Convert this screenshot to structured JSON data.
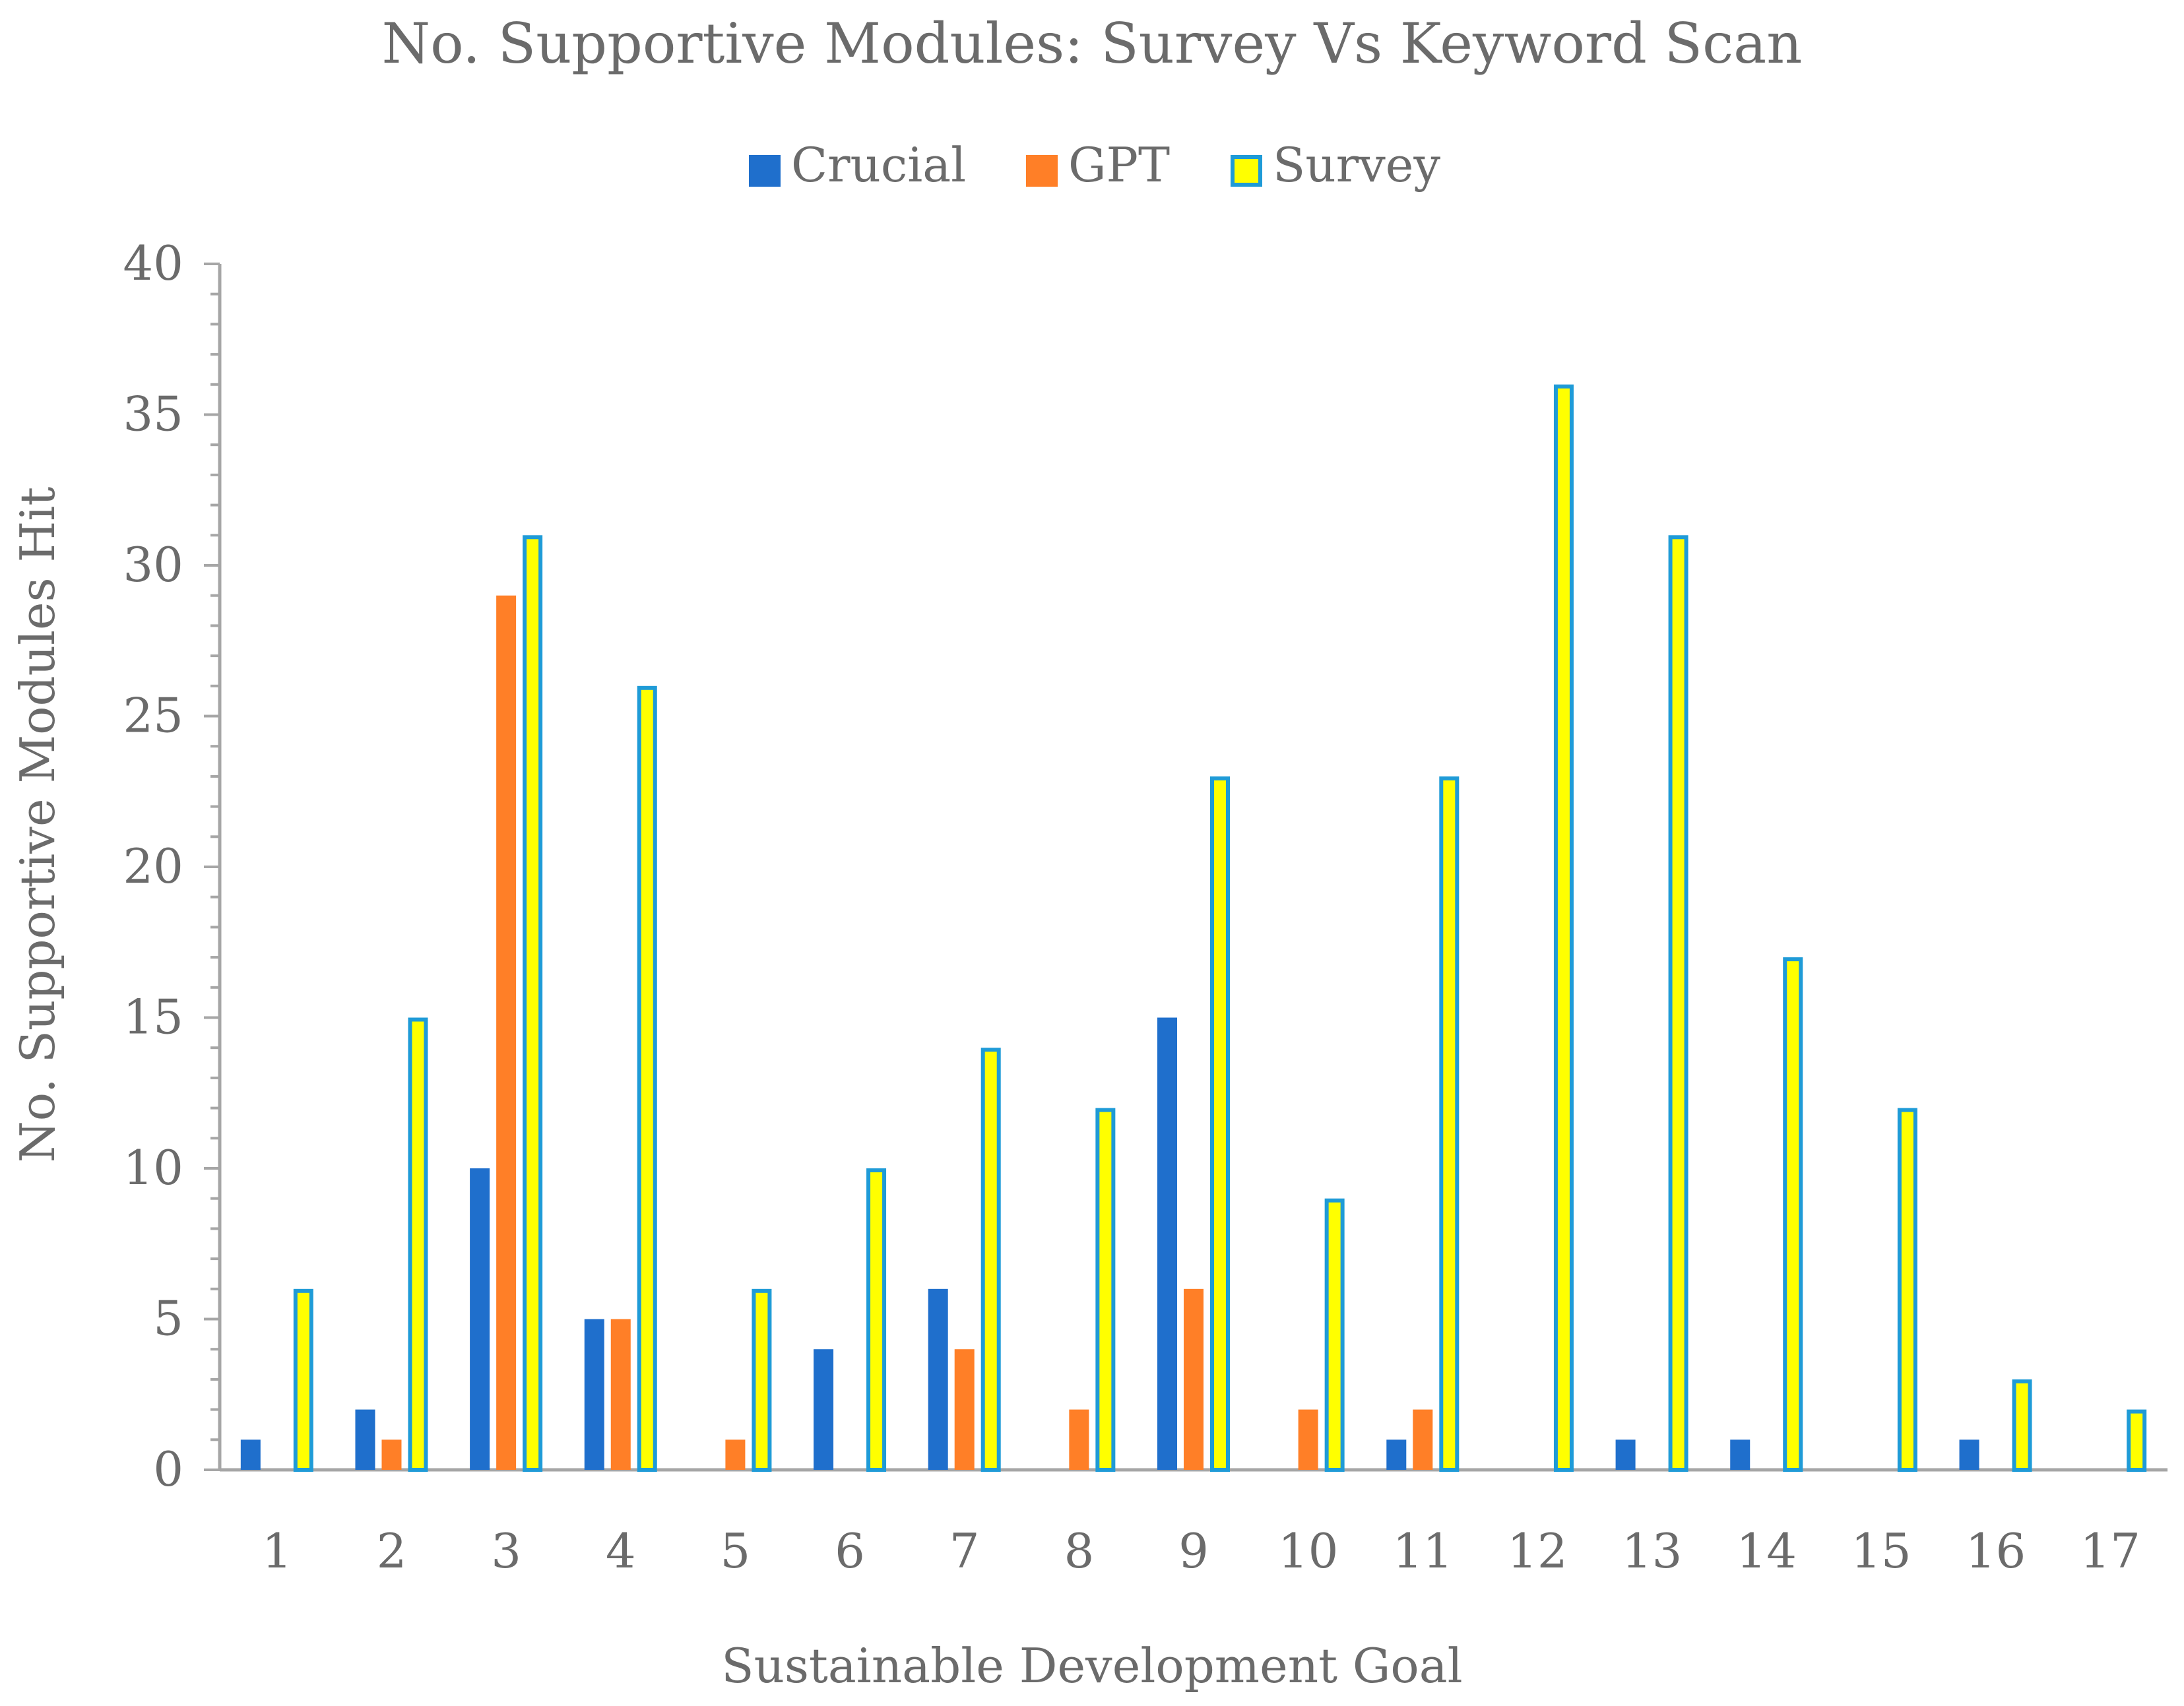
{
  "chart_data": {
    "type": "bar",
    "title": "No. Supportive Modules: Survey Vs Keyword Scan",
    "xlabel": "Sustainable Development Goal",
    "ylabel": "No. Supportive Modules Hit",
    "ylim": [
      0,
      40
    ],
    "yticks": [
      "0",
      "5",
      "10",
      "15",
      "20",
      "25",
      "30",
      "35",
      "40"
    ],
    "grid": false,
    "legend_position": "top-center",
    "categories": [
      "1",
      "2",
      "3",
      "4",
      "5",
      "6",
      "7",
      "8",
      "9",
      "10",
      "11",
      "12",
      "13",
      "14",
      "15",
      "16",
      "17"
    ],
    "series": [
      {
        "name": "Crucial",
        "color": "#1f6fcc",
        "values": [
          1,
          2,
          10,
          5,
          0,
          4,
          6,
          0,
          15,
          0,
          1,
          0,
          1,
          1,
          0,
          1,
          0
        ]
      },
      {
        "name": "GPT",
        "color": "#ff7f27",
        "values": [
          0,
          1,
          29,
          5,
          1,
          0,
          4,
          2,
          6,
          2,
          2,
          0,
          0,
          0,
          0,
          0,
          0
        ]
      },
      {
        "name": "Survey",
        "color": "#ffff00",
        "border_color": "#1f9bd7",
        "values": [
          6,
          15,
          31,
          26,
          6,
          10,
          14,
          12,
          23,
          9,
          23,
          36,
          31,
          17,
          12,
          3,
          2
        ]
      }
    ]
  },
  "colors": {
    "axis": "#a6a6a6",
    "text": "#6b6b6b"
  }
}
